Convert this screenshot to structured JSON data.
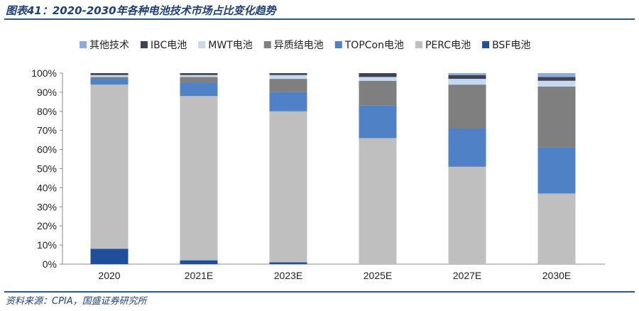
{
  "title": "图表41：2020-2030年各种电池技术市场占比变化趋势",
  "source": "资料来源：CPIA，国盛证券研究所",
  "chart_data": {
    "type": "bar",
    "stacked": true,
    "categories": [
      "2020",
      "2021E",
      "2023E",
      "2025E",
      "2027E",
      "2030E"
    ],
    "ylim": [
      0,
      100
    ],
    "yticks": [
      "0%",
      "10%",
      "20%",
      "30%",
      "40%",
      "50%",
      "60%",
      "70%",
      "80%",
      "90%",
      "100%"
    ],
    "legend_position": "top",
    "series": [
      {
        "name": "BSF电池",
        "color": "#1f4e9a",
        "values": [
          8,
          2,
          1,
          0,
          0,
          0
        ]
      },
      {
        "name": "PERC电池",
        "color": "#bfbfbf",
        "values": [
          86,
          86,
          79,
          66,
          51,
          37
        ]
      },
      {
        "name": "TOPCon电池",
        "color": "#4f81c7",
        "values": [
          3,
          7,
          10,
          17,
          20,
          24
        ]
      },
      {
        "name": "异质结电池",
        "color": "#7f7f7f",
        "values": [
          1,
          3,
          7,
          13,
          23,
          32
        ]
      },
      {
        "name": "MWT电池",
        "color": "#c5d9f1",
        "values": [
          1,
          1,
          2,
          2,
          3,
          3
        ]
      },
      {
        "name": "IBC电池",
        "color": "#3f4452",
        "values": [
          1,
          1,
          1,
          2,
          2,
          2
        ]
      },
      {
        "name": "其他技术",
        "color": "#8faadc",
        "values": [
          0,
          0,
          0,
          0,
          1,
          2
        ]
      }
    ],
    "legend_order": [
      "其他技术",
      "IBC电池",
      "MWT电池",
      "异质结电池",
      "TOPCon电池",
      "PERC电池",
      "BSF电池"
    ]
  }
}
